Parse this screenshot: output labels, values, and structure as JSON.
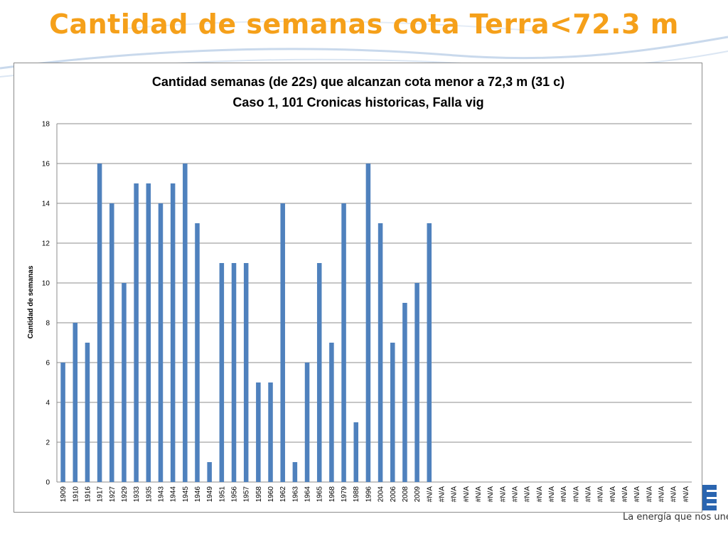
{
  "slide": {
    "title": "Cantidad de semanas cota Terra<72.3 m",
    "title_color": "#f5a01a",
    "tagline": "La energía que nos une",
    "logo": "brand-logo-icon",
    "brand_color": "#2a65b0"
  },
  "chart_data": {
    "type": "bar",
    "title": "Cantidad semanas (de 22s) que alcanzan cota menor a 72,3 m (31 c)",
    "subtitle": "Caso  1, 101 Cronicas historicas, Falla vig",
    "ylabel": "Cantidad de semanas",
    "xlabel": "",
    "ylim": [
      0,
      18
    ],
    "yticks": [
      0,
      2,
      4,
      6,
      8,
      10,
      12,
      14,
      16,
      18
    ],
    "grid": true,
    "legend": "none",
    "bar_color": "#4f81bd",
    "categories": [
      "1909",
      "1910",
      "1916",
      "1917",
      "1927",
      "1929",
      "1933",
      "1935",
      "1943",
      "1944",
      "1945",
      "1946",
      "1949",
      "1951",
      "1956",
      "1957",
      "1958",
      "1960",
      "1962",
      "1963",
      "1964",
      "1965",
      "1968",
      "1979",
      "1988",
      "1996",
      "2004",
      "2006",
      "2008",
      "2009",
      "#N/A",
      "#N/A",
      "#N/A",
      "#N/A",
      "#N/A",
      "#N/A",
      "#N/A",
      "#N/A",
      "#N/A",
      "#N/A",
      "#N/A",
      "#N/A",
      "#N/A",
      "#N/A",
      "#N/A",
      "#N/A",
      "#N/A",
      "#N/A",
      "#N/A",
      "#N/A",
      "#N/A",
      "#N/A"
    ],
    "values": [
      6,
      8,
      7,
      16,
      14,
      10,
      15,
      15,
      14,
      15,
      16,
      13,
      1,
      11,
      11,
      11,
      5,
      5,
      14,
      1,
      6,
      11,
      7,
      14,
      3,
      16,
      13,
      7,
      9,
      10,
      13,
      null,
      null,
      null,
      null,
      null,
      null,
      null,
      null,
      null,
      null,
      null,
      null,
      null,
      null,
      null,
      null,
      null,
      null,
      null,
      null,
      null
    ]
  }
}
